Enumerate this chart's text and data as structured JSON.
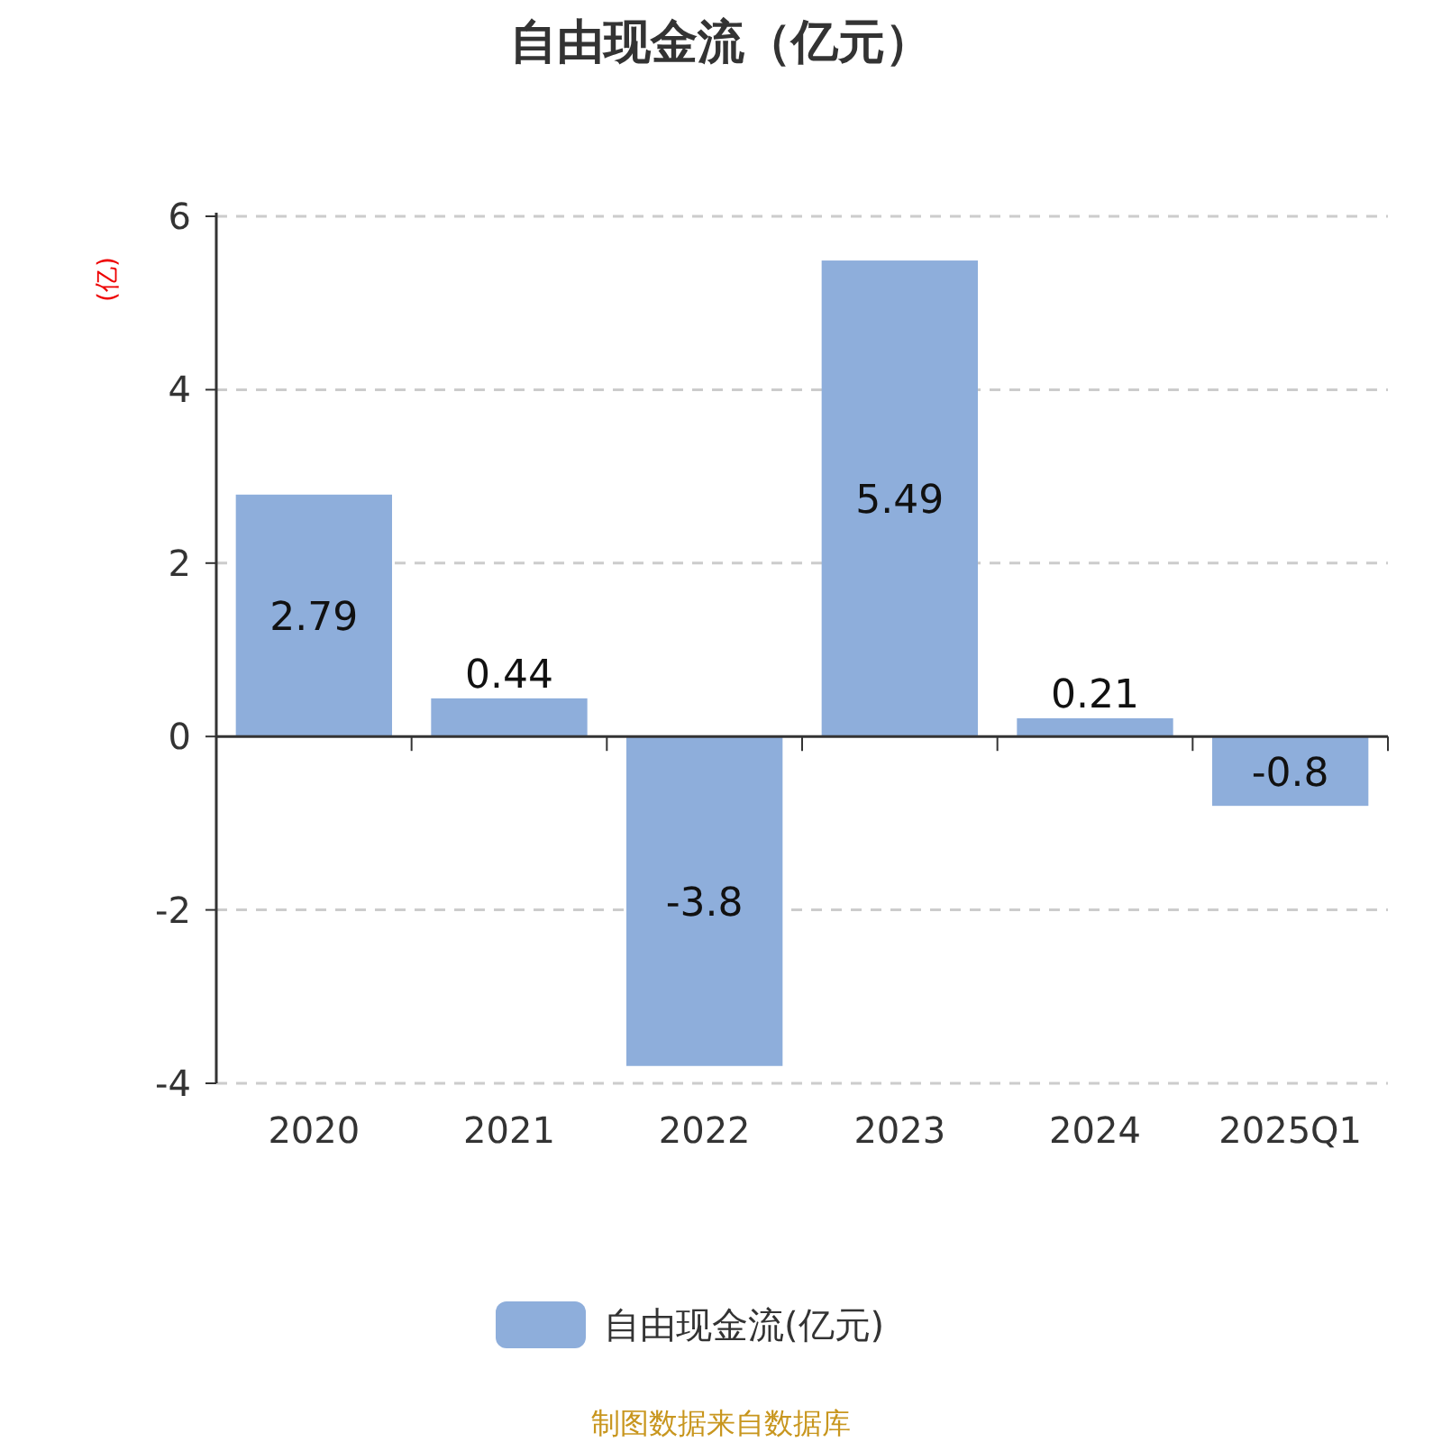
{
  "chart_data": {
    "type": "bar",
    "title": "自由现金流（亿元）",
    "ylabel": "(亿)",
    "categories": [
      "2020",
      "2021",
      "2022",
      "2023",
      "2024",
      "2025Q1"
    ],
    "series": [
      {
        "name": "自由现金流(亿元)",
        "color": "#8eaedb",
        "values": [
          2.79,
          0.44,
          -3.8,
          5.49,
          0.21,
          -0.8
        ]
      }
    ],
    "ylim": [
      -4,
      6
    ],
    "yticks": [
      -4,
      -2,
      0,
      2,
      4,
      6
    ],
    "grid": "y",
    "legend": "bottom",
    "data_labels": true,
    "annotations": [
      "制图数据来自数据库"
    ]
  }
}
